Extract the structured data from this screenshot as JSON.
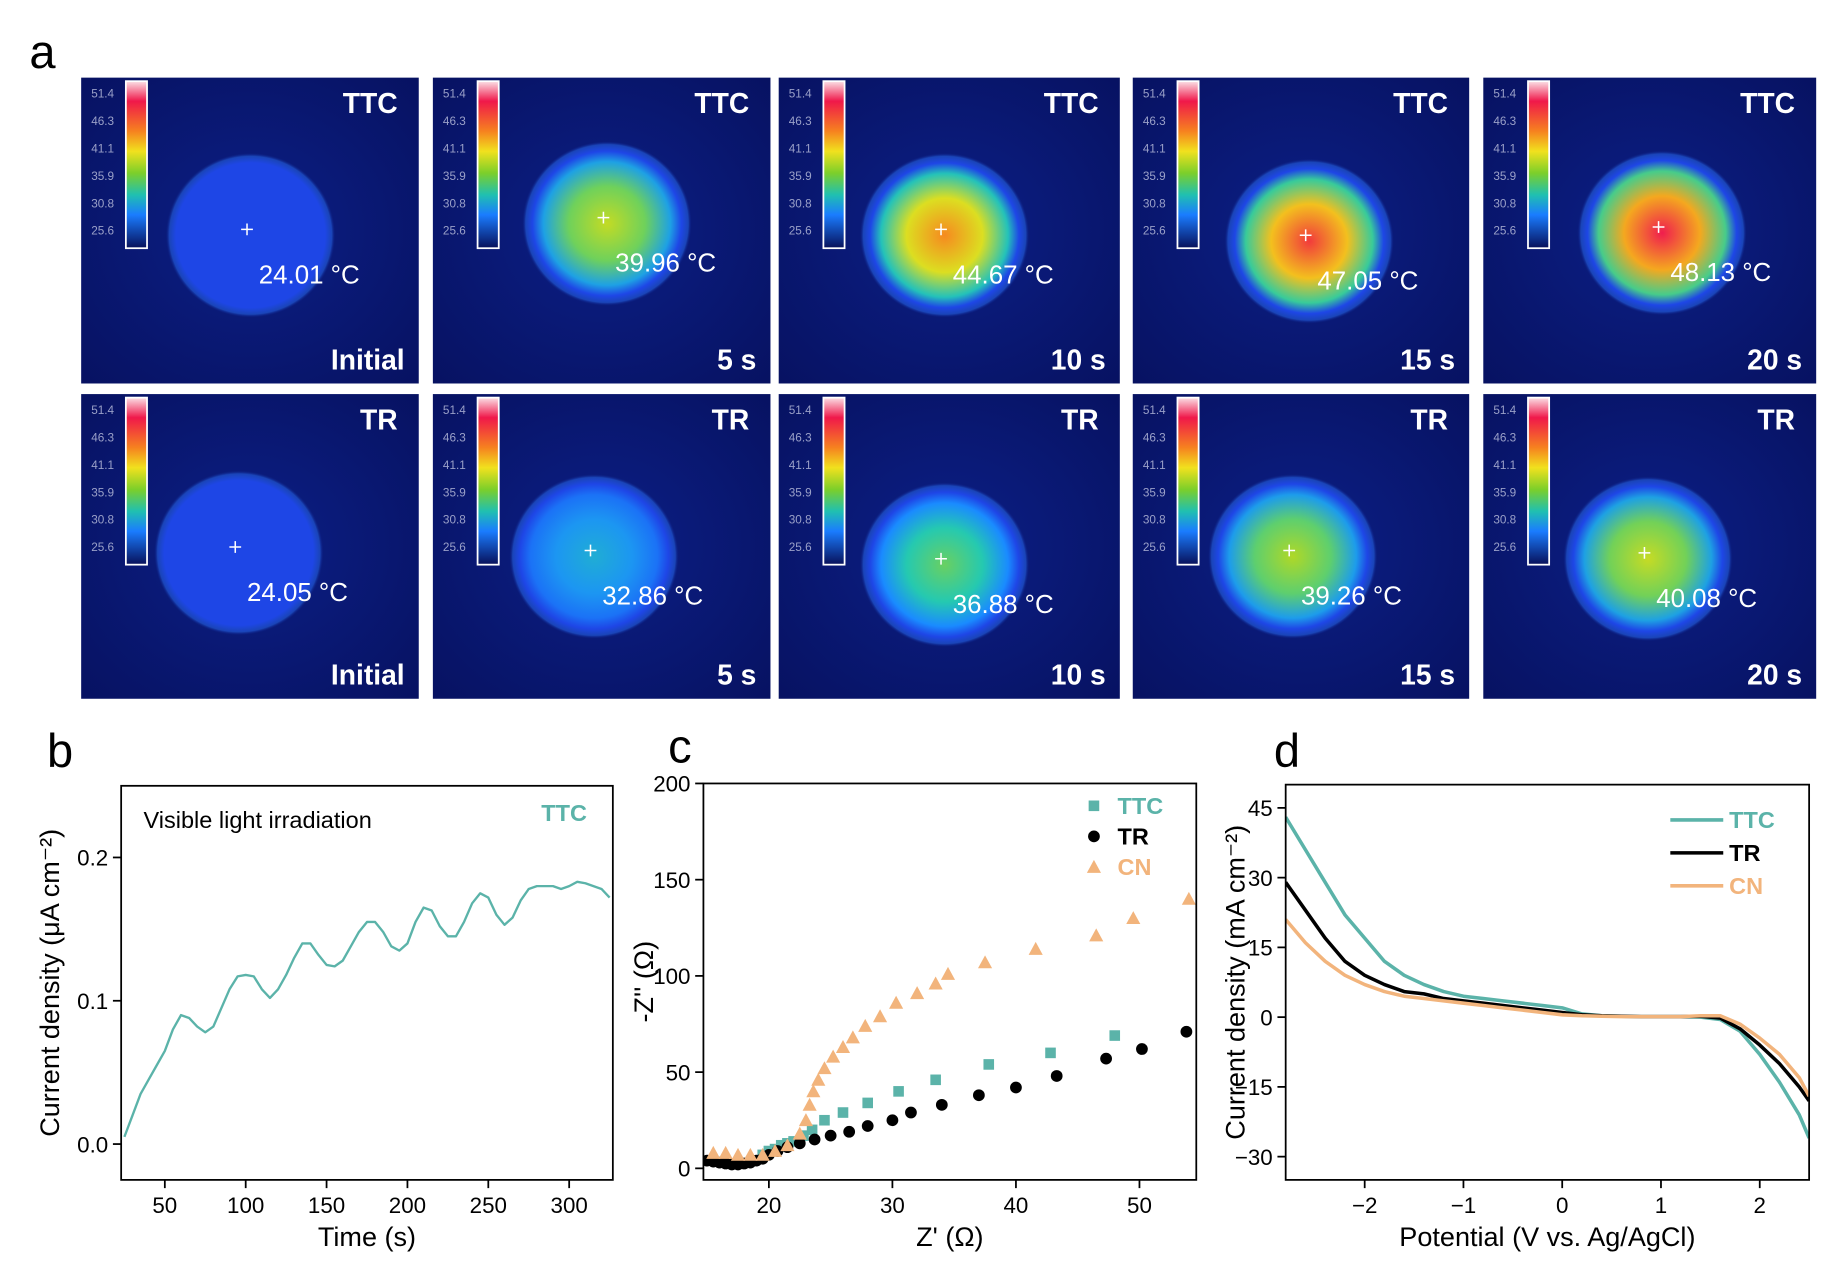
{
  "thermal": {
    "panel_label": "a",
    "colorbar_ticks": [
      "51.4",
      "46.3",
      "41.1",
      "35.9",
      "30.8",
      "25.6"
    ],
    "rows": [
      {
        "sample": "TTC",
        "images": [
          {
            "time": "Initial",
            "temperature": "24.01 °C"
          },
          {
            "time": "5 s",
            "temperature": "39.96 °C"
          },
          {
            "time": "10 s",
            "temperature": "44.67 °C"
          },
          {
            "time": "15 s",
            "temperature": "47.05 °C"
          },
          {
            "time": "20 s",
            "temperature": "48.13 °C"
          }
        ]
      },
      {
        "sample": "TR",
        "images": [
          {
            "time": "Initial",
            "temperature": "24.05 °C"
          },
          {
            "time": "5 s",
            "temperature": "32.86 °C"
          },
          {
            "time": "10 s",
            "temperature": "36.88 °C"
          },
          {
            "time": "15 s",
            "temperature": "39.26 °C"
          },
          {
            "time": "20 s",
            "temperature": "40.08 °C"
          }
        ]
      }
    ]
  },
  "chart_data": [
    {
      "panel_label": "b",
      "type": "line",
      "annotation": "Visible light irradiation",
      "x_label": "Time (s)",
      "y_label": "Current density (μA cm⁻²)",
      "x": [
        25,
        30,
        35,
        40,
        45,
        50,
        55,
        60,
        65,
        70,
        75,
        80,
        85,
        90,
        95,
        100,
        105,
        110,
        115,
        120,
        125,
        130,
        135,
        140,
        145,
        150,
        155,
        160,
        165,
        170,
        175,
        180,
        185,
        190,
        195,
        200,
        205,
        210,
        215,
        220,
        225,
        230,
        235,
        240,
        245,
        250,
        255,
        260,
        265,
        270,
        275,
        280,
        285,
        290,
        295,
        300,
        305,
        310,
        315,
        320,
        325
      ],
      "series": [
        {
          "name": "TTC",
          "color": "#5bb3a9",
          "values": [
            0.005,
            0.02,
            0.035,
            0.045,
            0.055,
            0.065,
            0.08,
            0.09,
            0.088,
            0.082,
            0.078,
            0.082,
            0.095,
            0.108,
            0.117,
            0.118,
            0.117,
            0.108,
            0.102,
            0.108,
            0.118,
            0.13,
            0.14,
            0.14,
            0.132,
            0.125,
            0.124,
            0.128,
            0.138,
            0.148,
            0.155,
            0.155,
            0.148,
            0.138,
            0.135,
            0.14,
            0.155,
            0.165,
            0.163,
            0.152,
            0.145,
            0.145,
            0.155,
            0.168,
            0.175,
            0.172,
            0.16,
            0.153,
            0.158,
            0.17,
            0.178,
            0.18,
            0.18,
            0.18,
            0.178,
            0.18,
            0.183,
            0.182,
            0.18,
            0.178,
            0.172
          ]
        }
      ],
      "xlim": [
        23,
        327
      ],
      "ylim": [
        -0.025,
        0.25
      ],
      "xticks": [
        50,
        100,
        150,
        200,
        250,
        300
      ],
      "yticks": [
        {
          "value": 0,
          "label": "0.0"
        },
        0.1,
        0.2
      ],
      "legend": "upper right"
    },
    {
      "panel_label": "c",
      "type": "scatter",
      "x_label": "Z' (Ω)",
      "y_label": "-Z'' (Ω)",
      "series": [
        {
          "name": "TTC",
          "color": "#5bb3a9",
          "marker": "square",
          "x": [
            19.5,
            20,
            20.5,
            21,
            21.5,
            22,
            22.8,
            23.5,
            24.5,
            26,
            28,
            30.5,
            33.5,
            37.8,
            42.8,
            48
          ],
          "values": [
            7,
            9,
            10,
            12,
            13,
            14,
            17,
            20,
            25,
            29,
            34,
            40,
            46,
            54,
            60,
            69
          ]
        },
        {
          "name": "TR",
          "color": "#000000",
          "marker": "circle",
          "x": [
            15,
            15.5,
            16,
            16.5,
            17,
            17.5,
            18,
            18.5,
            19,
            19.5,
            20,
            20.7,
            21.5,
            22.5,
            23.7,
            25,
            26.5,
            28,
            30,
            31.5,
            34,
            37,
            40,
            43.3,
            47.3,
            50.2,
            53.8
          ],
          "values": [
            4,
            3.5,
            3,
            2.5,
            2,
            2,
            2.5,
            3,
            4,
            5,
            7,
            9,
            11,
            13,
            15,
            17,
            19,
            22,
            25,
            29,
            33,
            38,
            42,
            48,
            57,
            62,
            71
          ]
        },
        {
          "name": "CN",
          "color": "#f2b47c",
          "marker": "triangle",
          "x": [
            15.5,
            16.5,
            17.5,
            18.5,
            19.5,
            20.5,
            21.5,
            22.5,
            23,
            23.3,
            23.6,
            24,
            24.5,
            25.2,
            26,
            26.8,
            27.8,
            29,
            30.3,
            32,
            33.5,
            34.5,
            37.5,
            41.6,
            46.5,
            49.5,
            54
          ],
          "values": [
            8,
            8,
            7,
            7,
            7,
            9,
            12,
            18,
            25,
            33,
            40,
            46,
            52,
            58,
            63,
            68,
            74,
            79,
            86,
            91,
            96,
            101,
            107,
            114,
            121,
            130,
            140
          ]
        }
      ],
      "xlim": [
        14.7,
        54.6
      ],
      "ylim": [
        -6,
        200
      ],
      "xticks": [
        20,
        30,
        40,
        50
      ],
      "yticks": [
        0,
        50,
        100,
        150,
        200
      ],
      "legend": "upper right"
    },
    {
      "panel_label": "d",
      "type": "line",
      "x_label": "Potential (V vs. Ag/AgCl)",
      "y_label": "Current density (mA cm⁻²)",
      "x": [
        -2.8,
        -2.6,
        -2.4,
        -2.2,
        -2.0,
        -1.8,
        -1.6,
        -1.4,
        -1.2,
        -1.0,
        -0.8,
        -0.6,
        -0.4,
        -0.2,
        0,
        0.2,
        0.4,
        0.6,
        0.8,
        1.0,
        1.2,
        1.4,
        1.6,
        1.8,
        2.0,
        2.2,
        2.4,
        2.5
      ],
      "series": [
        {
          "name": "TTC",
          "color": "#5bb3a9",
          "values": [
            43,
            36,
            29,
            22,
            17,
            12,
            9,
            7,
            5.5,
            4.5,
            4,
            3.5,
            3,
            2.5,
            2,
            0.7,
            0.3,
            0.2,
            0.1,
            0.1,
            0.1,
            0,
            -0.5,
            -3,
            -8,
            -14,
            -21,
            -26
          ]
        },
        {
          "name": "TR",
          "color": "#000000",
          "values": [
            29,
            23,
            17,
            12,
            9,
            7,
            5.5,
            5,
            4,
            3.5,
            3,
            2.5,
            2,
            1.5,
            1,
            0.5,
            0.3,
            0.2,
            0.1,
            0.1,
            0.1,
            0.2,
            -0.2,
            -2.5,
            -6,
            -10,
            -15,
            -18
          ]
        },
        {
          "name": "CN",
          "color": "#f2b47c",
          "values": [
            21,
            16,
            12,
            9,
            7,
            5.5,
            4.5,
            4,
            3.5,
            3,
            2.5,
            2,
            1.5,
            1,
            0.5,
            0.3,
            0.2,
            0.1,
            0.1,
            0.1,
            0.1,
            0.3,
            0.3,
            -1.5,
            -4.5,
            -8,
            -13,
            -17
          ]
        }
      ],
      "xlim": [
        -2.8,
        2.5
      ],
      "ylim": [
        -35,
        50
      ],
      "xticks": [
        {
          "value": -2,
          "label": "−2"
        },
        {
          "value": -1,
          "label": "−1"
        },
        0,
        1,
        2
      ],
      "yticks": [
        45,
        30,
        15,
        0,
        {
          "value": -15,
          "label": "−15"
        },
        {
          "value": -30,
          "label": "−30"
        }
      ],
      "legend": "upper right"
    }
  ]
}
